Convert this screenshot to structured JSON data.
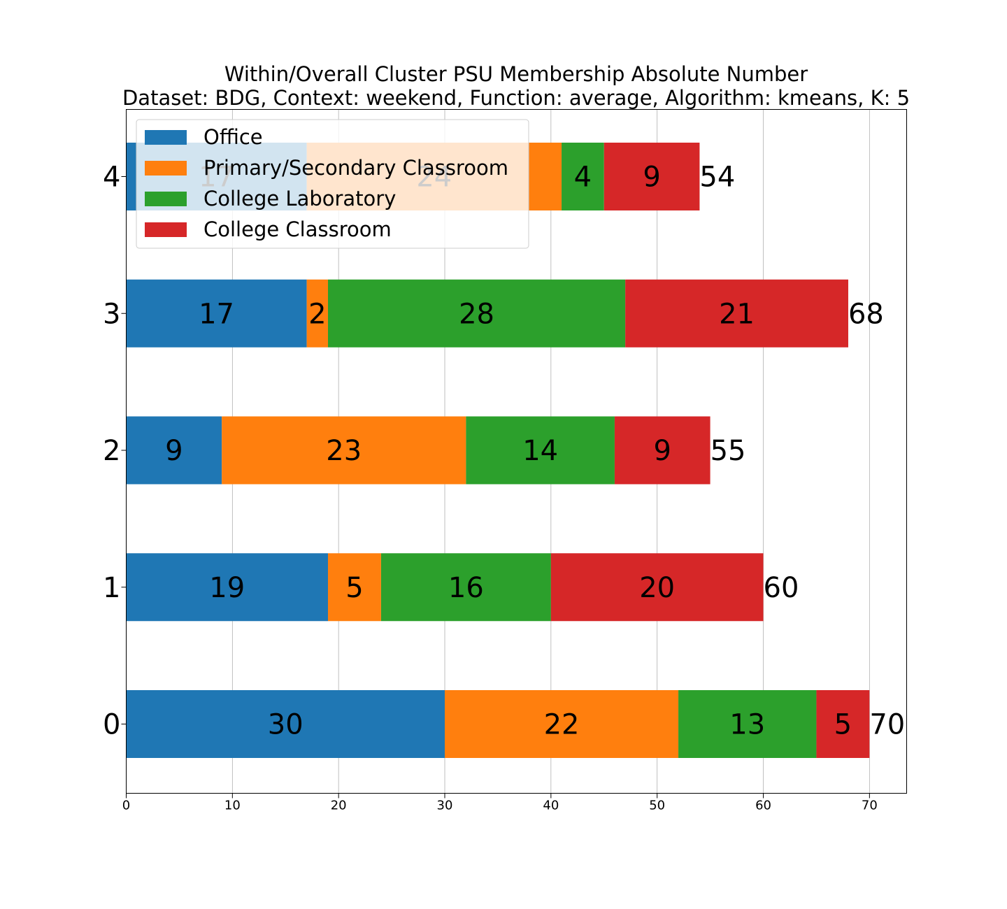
{
  "chart_data": {
    "type": "bar",
    "orientation": "horizontal",
    "stacked": true,
    "title": "Within/Overall Cluster PSU Membership Absolute Number",
    "subtitle": "Dataset: BDG, Context: weekend, Function: average, Algorithm: kmeans, K: 5",
    "xlabel": "",
    "ylabel": "",
    "categories": [
      "0",
      "1",
      "2",
      "3",
      "4"
    ],
    "xlim": [
      0,
      73.5
    ],
    "xticks": [
      0,
      10,
      20,
      30,
      40,
      50,
      60,
      70
    ],
    "grid": "vertical",
    "legend_position": "top-left",
    "series": [
      {
        "name": "Office",
        "color": "#1f77b4",
        "values": [
          30,
          19,
          9,
          17,
          17
        ]
      },
      {
        "name": "Primary/Secondary Classroom",
        "color": "#ff7f0e",
        "values": [
          22,
          5,
          23,
          2,
          24
        ]
      },
      {
        "name": "College Laboratory",
        "color": "#2ca02c",
        "values": [
          13,
          16,
          14,
          28,
          4
        ]
      },
      {
        "name": "College Classroom",
        "color": "#d62728",
        "values": [
          5,
          20,
          9,
          21,
          9
        ]
      }
    ],
    "totals": [
      70,
      60,
      55,
      68,
      54
    ]
  }
}
